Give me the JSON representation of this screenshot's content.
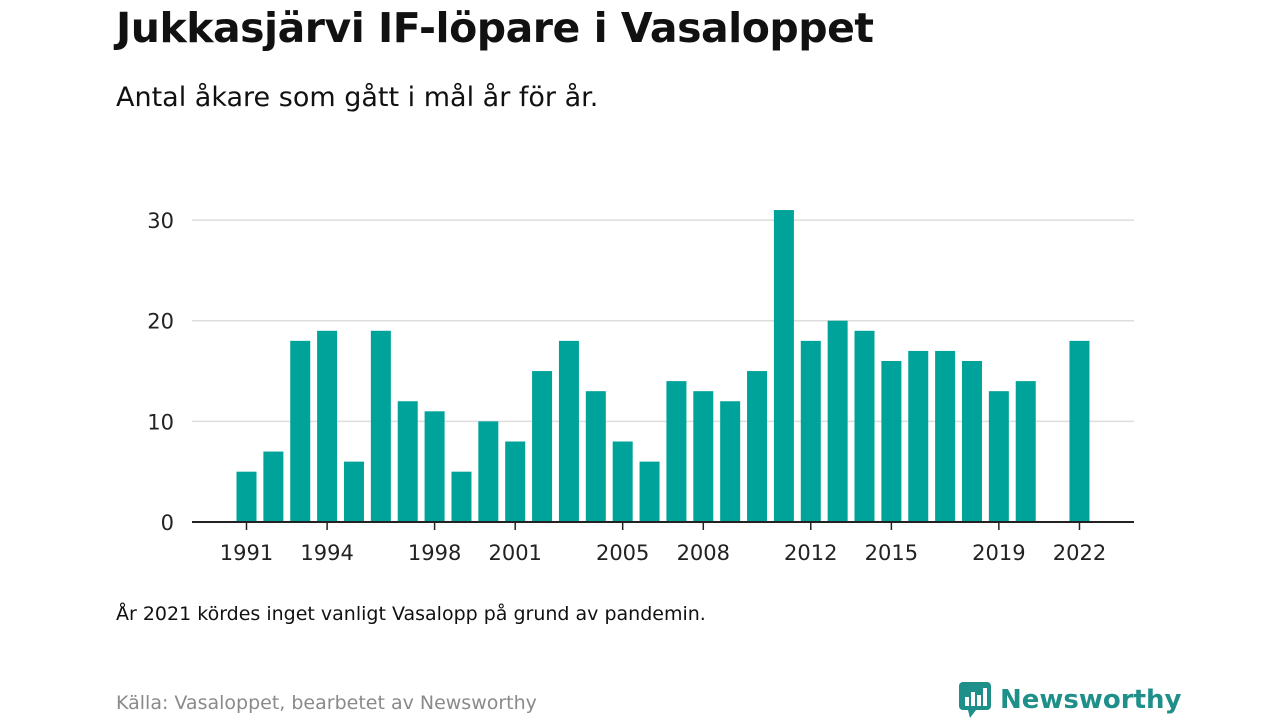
{
  "title": "Jukkasjärvi IF-löpare i Vasaloppet",
  "subtitle": "Antal åkare som gått i mål år för år.",
  "note": "År 2021 kördes inget vanligt Vasalopp på grund av pandemin.",
  "source": "Källa: Vasaloppet, bearbetet av Newsworthy",
  "brand": {
    "name": "Newsworthy",
    "color": "#1f8f8a",
    "icon": "newsworthy-logo-icon"
  },
  "colors": {
    "bar": "#00a39a",
    "grid": "#dddddd",
    "axis": "#222222"
  },
  "chart_data": {
    "type": "bar",
    "x": [
      1991,
      1992,
      1993,
      1994,
      1995,
      1996,
      1997,
      1998,
      1999,
      2000,
      2001,
      2002,
      2003,
      2004,
      2005,
      2006,
      2007,
      2008,
      2009,
      2010,
      2011,
      2012,
      2013,
      2014,
      2015,
      2016,
      2017,
      2018,
      2019,
      2020,
      2021,
      2022
    ],
    "values": [
      5,
      7,
      18,
      19,
      6,
      19,
      12,
      11,
      5,
      10,
      8,
      15,
      18,
      13,
      8,
      6,
      14,
      13,
      12,
      15,
      31,
      18,
      20,
      19,
      16,
      17,
      17,
      16,
      13,
      14,
      null,
      18
    ],
    "xticks": [
      1991,
      1994,
      1998,
      2001,
      2005,
      2008,
      2012,
      2015,
      2019,
      2022
    ],
    "yticks": [
      0,
      10,
      20,
      30
    ],
    "ylim": [
      0,
      31.5
    ],
    "grid": "horizontal",
    "xlabel": "",
    "ylabel": ""
  }
}
